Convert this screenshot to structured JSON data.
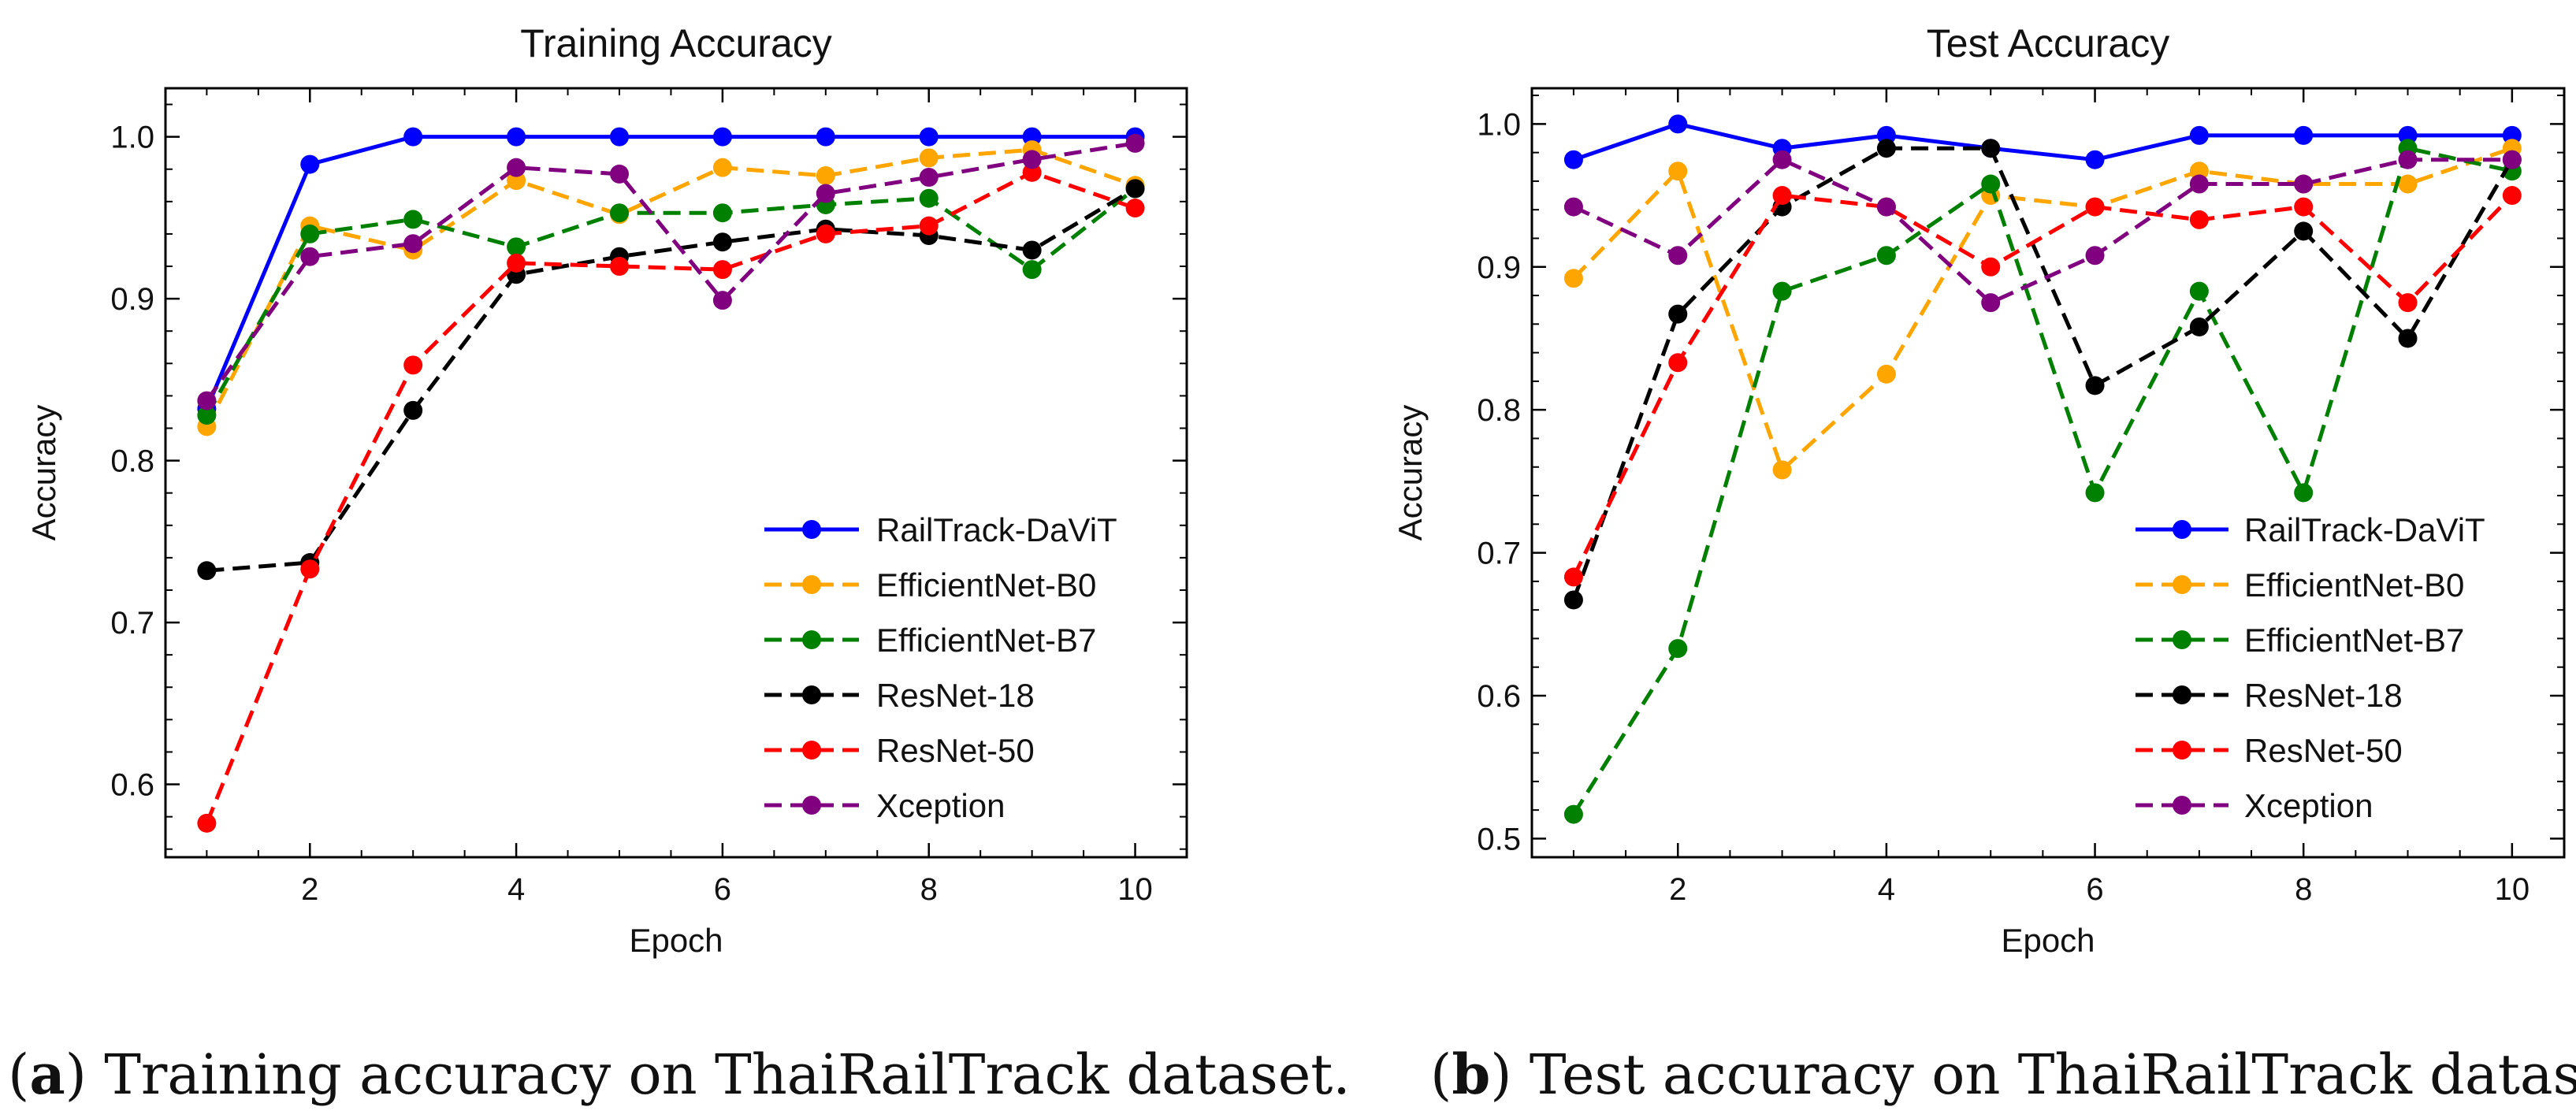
{
  "chart_data": [
    {
      "type": "line",
      "title": "Training Accuracy",
      "xlabel": "Epoch",
      "ylabel": "Accuracy",
      "x": [
        1,
        2,
        3,
        4,
        5,
        6,
        7,
        8,
        9,
        10
      ],
      "xlim": [
        0.6,
        10.5
      ],
      "ylim": [
        0.555,
        1.03
      ],
      "xticks": [
        2,
        4,
        6,
        8,
        10
      ],
      "yticks": [
        0.6,
        0.7,
        0.8,
        0.9,
        1.0
      ],
      "ytick_labels": [
        "0.6",
        "0.7",
        "0.8",
        "0.9",
        "1.0"
      ],
      "legend_position": "bottom-right",
      "caption_letter": "a",
      "caption_text": "Training accuracy on ThaiRailTrack dataset.",
      "series": [
        {
          "name": "RailTrack-DaViT",
          "color": "#0000ff",
          "dashed": false,
          "values": [
            0.832,
            0.983,
            1.0,
            1.0,
            1.0,
            1.0,
            1.0,
            1.0,
            1.0,
            1.0
          ]
        },
        {
          "name": "EfficientNet-B0",
          "color": "#ffa500",
          "dashed": true,
          "values": [
            0.821,
            0.945,
            0.93,
            0.973,
            0.952,
            0.981,
            0.976,
            0.987,
            0.992,
            0.97
          ]
        },
        {
          "name": "EfficientNet-B7",
          "color": "#008000",
          "dashed": true,
          "values": [
            0.828,
            0.94,
            0.949,
            0.932,
            0.953,
            0.953,
            0.958,
            0.962,
            0.918,
            0.968
          ]
        },
        {
          "name": "ResNet-18",
          "color": "#000000",
          "dashed": true,
          "values": [
            0.732,
            0.737,
            0.831,
            0.915,
            0.926,
            0.935,
            0.943,
            0.939,
            0.93,
            0.968
          ]
        },
        {
          "name": "ResNet-50",
          "color": "#ff0000",
          "dashed": true,
          "values": [
            0.576,
            0.733,
            0.859,
            0.922,
            0.92,
            0.918,
            0.94,
            0.945,
            0.978,
            0.956
          ]
        },
        {
          "name": "Xception",
          "color": "#800080",
          "dashed": true,
          "values": [
            0.837,
            0.926,
            0.934,
            0.981,
            0.977,
            0.899,
            0.965,
            0.975,
            0.986,
            0.996
          ]
        }
      ]
    },
    {
      "type": "line",
      "title": "Test Accuracy",
      "xlabel": "Epoch",
      "ylabel": "Accuracy",
      "x": [
        1,
        2,
        3,
        4,
        5,
        6,
        7,
        8,
        9,
        10
      ],
      "xlim": [
        0.6,
        10.5
      ],
      "ylim": [
        0.487,
        1.025
      ],
      "xticks": [
        2,
        4,
        6,
        8,
        10
      ],
      "yticks": [
        0.5,
        0.6,
        0.7,
        0.8,
        0.9,
        1.0
      ],
      "ytick_labels": [
        "0.5",
        "0.6",
        "0.7",
        "0.8",
        "0.9",
        "1.0"
      ],
      "legend_position": "center-right",
      "caption_letter": "b",
      "caption_text": "Test accuracy on ThaiRailTrack dataset.",
      "series": [
        {
          "name": "RailTrack-DaViT",
          "color": "#0000ff",
          "dashed": false,
          "values": [
            0.975,
            1.0,
            0.983,
            0.992,
            0.983,
            0.975,
            0.992,
            0.992,
            0.992,
            0.992
          ]
        },
        {
          "name": "EfficientNet-B0",
          "color": "#ffa500",
          "dashed": true,
          "values": [
            0.892,
            0.967,
            0.758,
            0.825,
            0.95,
            0.942,
            0.967,
            0.958,
            0.958,
            0.983
          ]
        },
        {
          "name": "EfficientNet-B7",
          "color": "#008000",
          "dashed": true,
          "values": [
            0.517,
            0.633,
            0.883,
            0.908,
            0.958,
            0.742,
            0.883,
            0.742,
            0.983,
            0.967
          ]
        },
        {
          "name": "ResNet-18",
          "color": "#000000",
          "dashed": true,
          "values": [
            0.667,
            0.867,
            0.942,
            0.983,
            0.983,
            0.817,
            0.858,
            0.925,
            0.85,
            0.975
          ]
        },
        {
          "name": "ResNet-50",
          "color": "#ff0000",
          "dashed": true,
          "values": [
            0.683,
            0.833,
            0.95,
            0.942,
            0.9,
            0.942,
            0.933,
            0.942,
            0.875,
            0.95
          ]
        },
        {
          "name": "Xception",
          "color": "#800080",
          "dashed": true,
          "values": [
            0.942,
            0.908,
            0.975,
            0.942,
            0.875,
            0.908,
            0.958,
            0.958,
            0.975,
            0.975
          ]
        }
      ]
    }
  ]
}
